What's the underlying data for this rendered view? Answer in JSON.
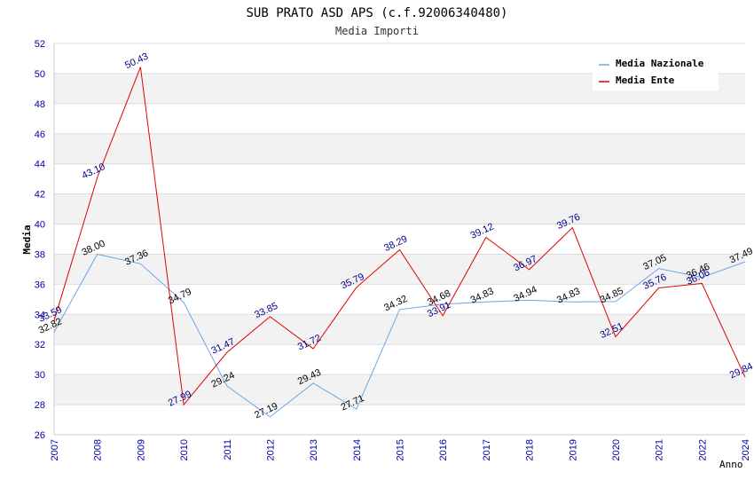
{
  "chart_data": {
    "type": "line",
    "title": "SUB PRATO ASD APS (c.f.92006340480)",
    "subtitle": "Media Importi",
    "xlabel": "Anno",
    "ylabel": "Media",
    "categories": [
      "2007",
      "2008",
      "2009",
      "2010",
      "2011",
      "2012",
      "2013",
      "2014",
      "2015",
      "2016",
      "2017",
      "2018",
      "2019",
      "2020",
      "2021",
      "2022",
      "2024"
    ],
    "ylim": [
      26,
      52
    ],
    "yticks": [
      26,
      28,
      30,
      32,
      34,
      36,
      38,
      40,
      42,
      44,
      46,
      48,
      50,
      52
    ],
    "legend_position": "top-right",
    "series": [
      {
        "name": "Media Nazionale",
        "color": "#6aa6e8",
        "label_color": "#000000",
        "values": [
          32.82,
          38.0,
          37.36,
          34.79,
          29.24,
          27.19,
          29.43,
          27.71,
          34.32,
          34.68,
          34.83,
          34.94,
          34.83,
          34.85,
          37.05,
          36.46,
          37.49
        ]
      },
      {
        "name": "Media Ente",
        "color": "#e00000",
        "label_color": "#00008b",
        "values": [
          33.59,
          43.1,
          50.43,
          27.99,
          31.47,
          33.85,
          31.72,
          35.79,
          38.29,
          33.91,
          39.12,
          36.97,
          39.76,
          32.51,
          35.76,
          36.06,
          29.84
        ]
      }
    ]
  }
}
